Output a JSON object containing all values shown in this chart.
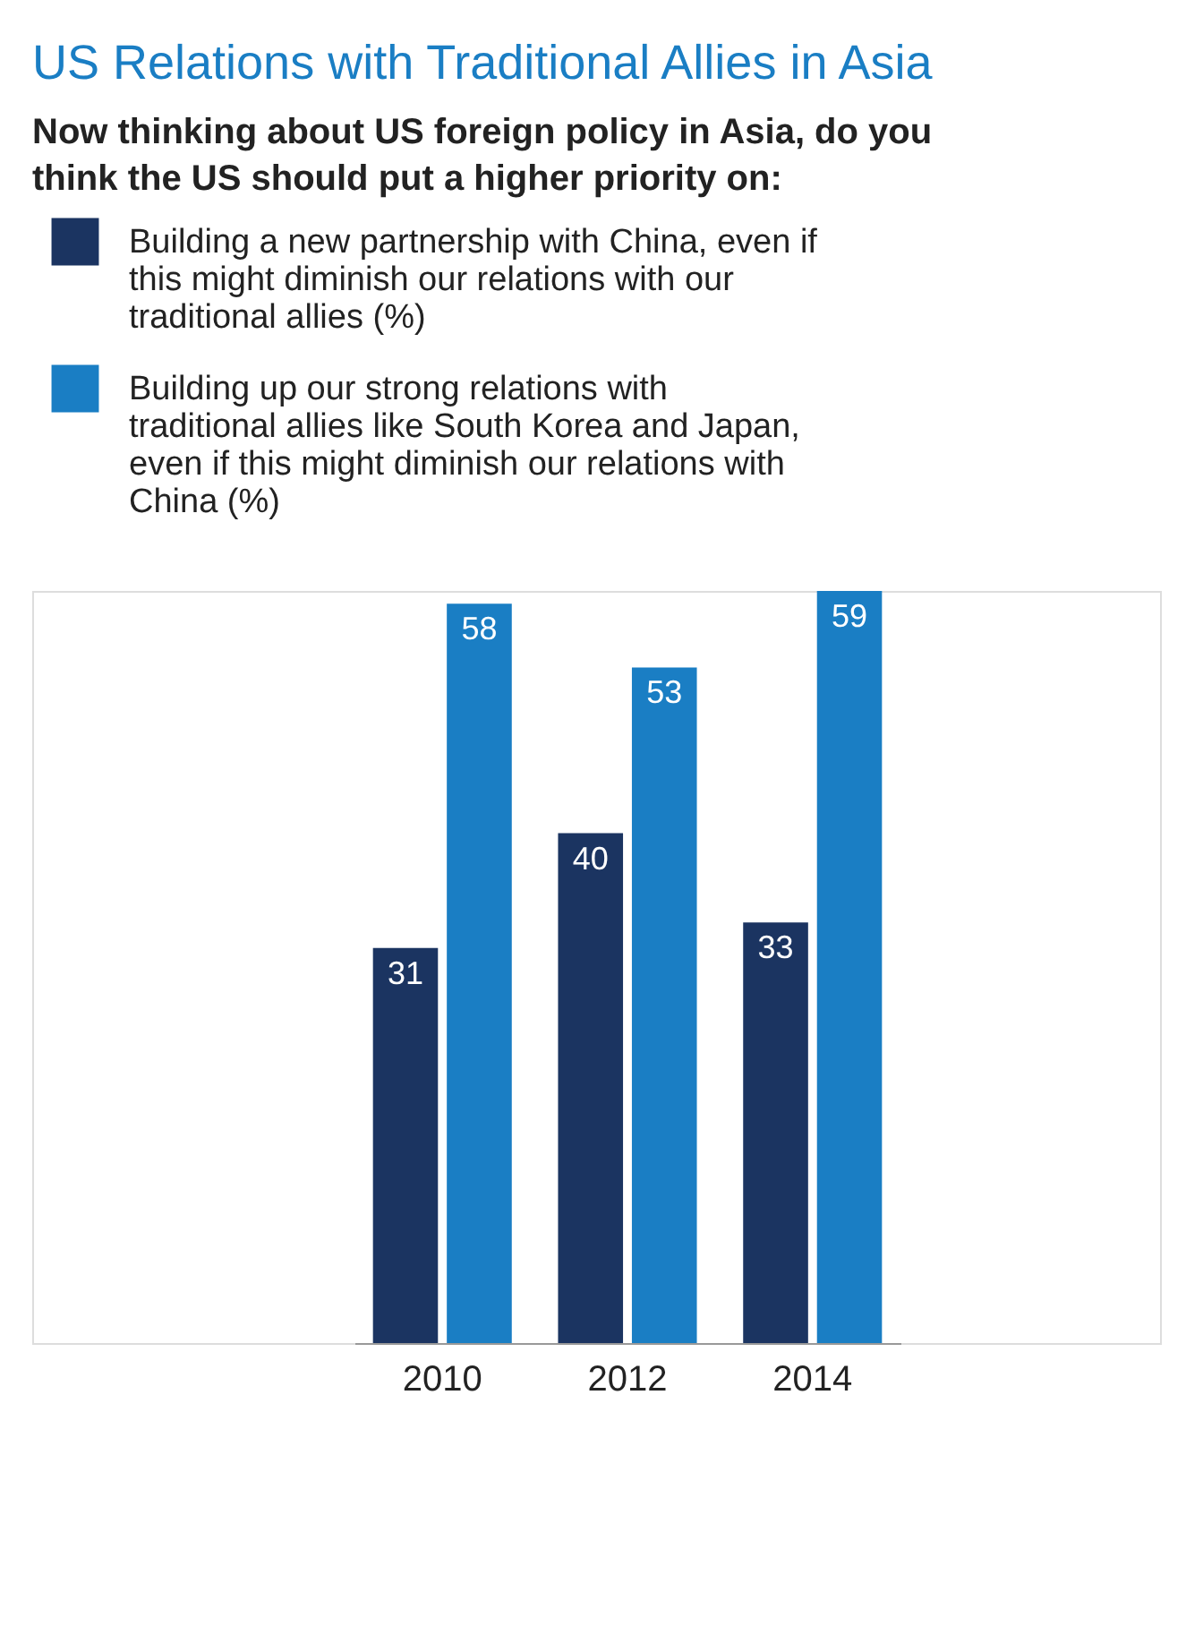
{
  "chart_data": {
    "type": "bar",
    "title": "US Relations with Traditional Allies in Asia",
    "subtitle": "Now thinking about US foreign policy in Asia, do you think the US should put a higher priority on:",
    "categories": [
      "2010",
      "2012",
      "2014"
    ],
    "series": [
      {
        "name": "Building a new partnership with China, even if this might diminish our relations with our traditional allies (%)",
        "color": "#1b3461",
        "values": [
          31,
          40,
          33
        ]
      },
      {
        "name": "Building up our strong relations with traditional allies like South Korea and Japan, even if this might diminish our relations with China (%)",
        "color": "#1a7ec4",
        "values": [
          58,
          53,
          59
        ]
      }
    ],
    "data_labels": true,
    "legend": "top",
    "grid": false,
    "tick_labels": "x"
  }
}
